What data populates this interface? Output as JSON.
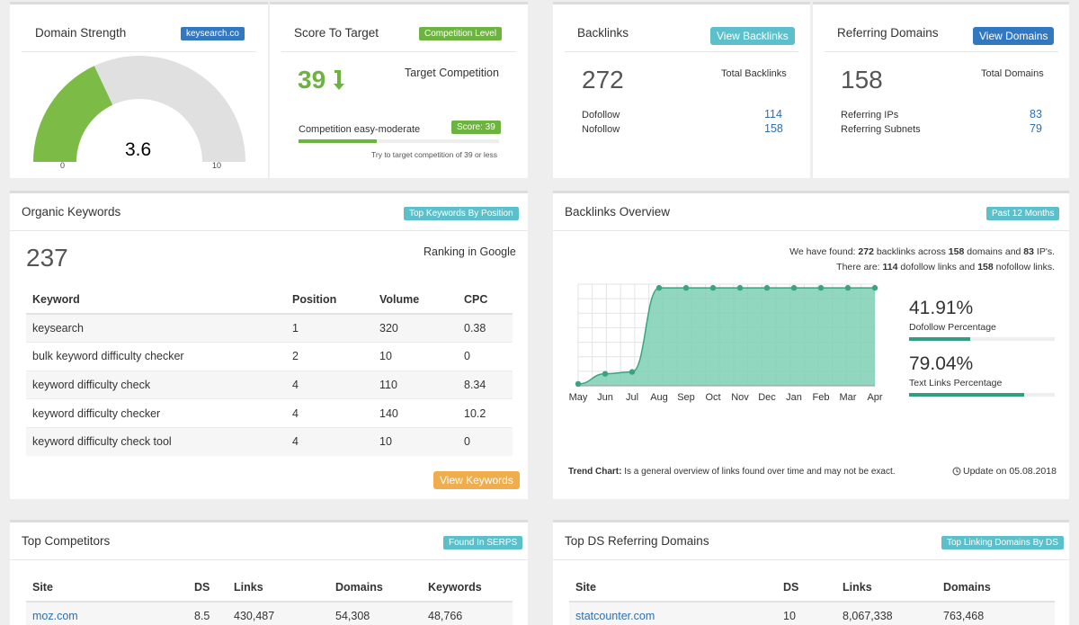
{
  "domain_strength": {
    "title": "Domain Strength",
    "badge": "keysearch.co",
    "value": "3.6",
    "gauge_value": 3.6,
    "gauge_max": 10,
    "min_label": "0",
    "max_label": "10",
    "colors": {
      "fill": "#7cbb45",
      "track": "#e0e0e0"
    }
  },
  "score_to_target": {
    "title": "Score To Target",
    "badge": "Competition Level",
    "score": "39",
    "target_label": "Target Competition",
    "competition_text": "Competition easy-moderate",
    "score_badge": "Score: 39",
    "progress": 0.39,
    "hint": "Try to target competition of 39 or less"
  },
  "backlinks": {
    "title": "Backlinks",
    "button": "View Backlinks",
    "total": "272",
    "total_label": "Total Backlinks",
    "rows": [
      {
        "label": "Dofollow",
        "value": "114"
      },
      {
        "label": "Nofollow",
        "value": "158"
      }
    ]
  },
  "referring_domains": {
    "title": "Referring Domains",
    "button": "View Domains",
    "total": "158",
    "total_label": "Total Domains",
    "rows": [
      {
        "label": "Referring IPs",
        "value": "83"
      },
      {
        "label": "Referring Subnets",
        "value": "79"
      }
    ]
  },
  "organic_keywords": {
    "title": "Organic Keywords",
    "badge": "Top Keywords By Position",
    "total": "237",
    "ranking_label": "Ranking in Google",
    "columns": [
      "Keyword",
      "Position",
      "Volume",
      "CPC"
    ],
    "rows": [
      [
        "keysearch",
        "1",
        "320",
        "0.38"
      ],
      [
        "bulk keyword difficulty checker",
        "2",
        "10",
        "0"
      ],
      [
        "keyword difficulty check",
        "4",
        "110",
        "8.34"
      ],
      [
        "keyword difficulty checker",
        "4",
        "140",
        "10.2"
      ],
      [
        "keyword difficulty check tool",
        "4",
        "10",
        "0"
      ]
    ],
    "button": "View Keywords"
  },
  "backlinks_overview": {
    "title": "Backlinks Overview",
    "badge": "Past 12 Months",
    "found_line": {
      "t1": "We have found: ",
      "b1": "272",
      "t2": " backlinks across ",
      "b2": "158",
      "t3": " domains and ",
      "b3": "83",
      "t4": " IP's."
    },
    "there_line": {
      "t1": "There are: ",
      "b1": "114",
      "t2": " dofollow links and ",
      "b2": "158",
      "t3": " nofollow links."
    },
    "dofollow_pct": "41.91%",
    "dofollow_label": "Dofollow Percentage",
    "dofollow_value": 0.4191,
    "text_pct": "79.04%",
    "text_label": "Text Links Percentage",
    "text_value": 0.7904,
    "trend_bold": "Trend Chart:",
    "trend_text": " Is a general overview of links found over time and may not be exact.",
    "update_text": "Update on 05.08.2018"
  },
  "chart_data": {
    "type": "area",
    "categories": [
      "May",
      "Jun",
      "Jul",
      "Aug",
      "Sep",
      "Oct",
      "Nov",
      "Dec",
      "Jan",
      "Feb",
      "Mar",
      "Apr"
    ],
    "values": [
      2,
      13,
      15,
      106,
      106,
      106,
      106,
      106,
      106,
      106,
      106,
      106
    ],
    "ylim": [
      0,
      110
    ],
    "grid": true,
    "color": "#7ecfb3",
    "line_color": "#3aa381"
  },
  "top_competitors": {
    "title": "Top Competitors",
    "badge": "Found In SERPS",
    "columns": [
      "Site",
      "DS",
      "Links",
      "Domains",
      "Keywords"
    ],
    "rows": [
      [
        "moz.com",
        "8.5",
        "430,487",
        "54,308",
        "48,766"
      ]
    ]
  },
  "top_ds_referring": {
    "title": "Top DS Referring Domains",
    "badge": "Top Linking Domains By DS",
    "columns": [
      "Site",
      "DS",
      "Links",
      "Domains"
    ],
    "rows": [
      [
        "statcounter.com",
        "10",
        "8,067,338",
        "763,468"
      ]
    ]
  },
  "colors": {
    "green": "#6db33f",
    "blue": "#3278c0",
    "teal": "#5bc0cb",
    "orange": "#f0ad4e",
    "link": "#2b6fb6"
  }
}
